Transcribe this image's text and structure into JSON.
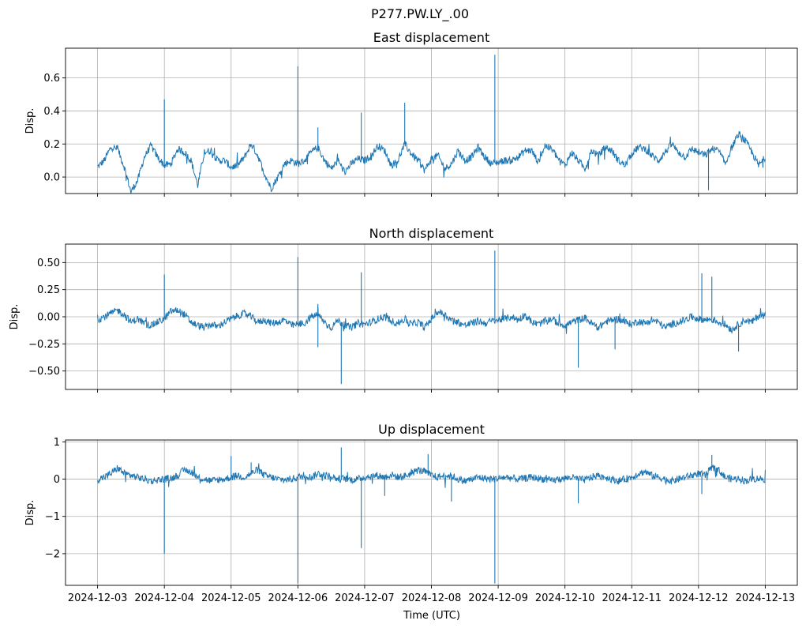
{
  "figure": {
    "title": "P277.PW.LY_.00",
    "xlabel": "Time (UTC)"
  },
  "chart_data": [
    {
      "type": "line",
      "title": "East displacement",
      "ylabel": "Disp.",
      "xlim": [
        -0.48,
        10.48
      ],
      "ylim": [
        -0.1,
        0.78
      ],
      "yticks": [
        0.0,
        0.2,
        0.4,
        0.6
      ],
      "ytick_labels": [
        "0.0",
        "0.2",
        "0.4",
        "0.6"
      ],
      "grid": true,
      "color": "#1f77b4",
      "series": [
        {
          "name": "East",
          "x": [
            0,
            0.1,
            0.2,
            0.3,
            0.4,
            0.5,
            0.6,
            0.7,
            0.8,
            0.9,
            1.0,
            1.1,
            1.2,
            1.3,
            1.4,
            1.5,
            1.6,
            1.7,
            1.8,
            1.9,
            2.0,
            2.1,
            2.2,
            2.3,
            2.4,
            2.5,
            2.6,
            2.7,
            2.8,
            2.9,
            3.0,
            3.1,
            3.2,
            3.3,
            3.4,
            3.5,
            3.6,
            3.7,
            3.8,
            3.9,
            4.0,
            4.1,
            4.2,
            4.3,
            4.4,
            4.5,
            4.6,
            4.7,
            4.8,
            4.9,
            5.0,
            5.1,
            5.2,
            5.3,
            5.4,
            5.5,
            5.6,
            5.7,
            5.8,
            5.9,
            6.0,
            6.1,
            6.2,
            6.3,
            6.4,
            6.5,
            6.6,
            6.7,
            6.8,
            6.9,
            7.0,
            7.1,
            7.2,
            7.3,
            7.4,
            7.5,
            7.6,
            7.7,
            7.8,
            7.9,
            8.0,
            8.1,
            8.2,
            8.3,
            8.4,
            8.5,
            8.6,
            8.7,
            8.8,
            8.9,
            9.0,
            9.1,
            9.2,
            9.3,
            9.4,
            9.5,
            9.6,
            9.7,
            9.8,
            9.9,
            10.0
          ],
          "values": [
            0.06,
            0.1,
            0.18,
            0.17,
            0.06,
            -0.09,
            -0.02,
            0.12,
            0.19,
            0.12,
            0.07,
            0.08,
            0.17,
            0.15,
            0.1,
            -0.05,
            0.15,
            0.16,
            0.1,
            0.1,
            0.06,
            0.07,
            0.12,
            0.2,
            0.13,
            0.02,
            -0.07,
            0.0,
            0.08,
            0.1,
            0.08,
            0.1,
            0.15,
            0.18,
            0.1,
            0.05,
            0.1,
            0.03,
            0.08,
            0.11,
            0.1,
            0.13,
            0.19,
            0.16,
            0.07,
            0.1,
            0.2,
            0.14,
            0.1,
            0.04,
            0.11,
            0.13,
            0.05,
            0.08,
            0.16,
            0.1,
            0.12,
            0.18,
            0.12,
            0.08,
            0.09,
            0.1,
            0.1,
            0.12,
            0.16,
            0.16,
            0.09,
            0.19,
            0.17,
            0.11,
            0.07,
            0.15,
            0.1,
            0.05,
            0.16,
            0.13,
            0.18,
            0.16,
            0.1,
            0.07,
            0.14,
            0.18,
            0.17,
            0.13,
            0.1,
            0.15,
            0.2,
            0.15,
            0.12,
            0.17,
            0.15,
            0.13,
            0.17,
            0.16,
            0.08,
            0.18,
            0.26,
            0.22,
            0.15,
            0.07,
            0.12
          ]
        }
      ],
      "spikes": [
        {
          "x": 1.0,
          "y": 0.47
        },
        {
          "x": 3.0,
          "y": 0.67
        },
        {
          "x": 3.3,
          "y": 0.3
        },
        {
          "x": 3.95,
          "y": 0.39
        },
        {
          "x": 4.6,
          "y": 0.45
        },
        {
          "x": 5.95,
          "y": 0.74
        },
        {
          "x": 9.15,
          "y": -0.08
        }
      ]
    },
    {
      "type": "line",
      "title": "North displacement",
      "ylabel": "Disp.",
      "xlim": [
        -0.48,
        10.48
      ],
      "ylim": [
        -0.67,
        0.67
      ],
      "yticks": [
        -0.5,
        -0.25,
        0.0,
        0.25,
        0.5
      ],
      "ytick_labels": [
        "−0.50",
        "−0.25",
        "0.00",
        "0.25",
        "0.50"
      ],
      "grid": true,
      "color": "#1f77b4",
      "series": [
        {
          "name": "North",
          "x": [
            0,
            0.1,
            0.2,
            0.3,
            0.4,
            0.5,
            0.6,
            0.7,
            0.8,
            0.9,
            1.0,
            1.1,
            1.2,
            1.3,
            1.4,
            1.5,
            1.6,
            1.7,
            1.8,
            1.9,
            2.0,
            2.1,
            2.2,
            2.3,
            2.4,
            2.5,
            2.6,
            2.7,
            2.8,
            2.9,
            3.0,
            3.1,
            3.2,
            3.3,
            3.4,
            3.5,
            3.6,
            3.7,
            3.8,
            3.9,
            4.0,
            4.1,
            4.2,
            4.3,
            4.4,
            4.5,
            4.6,
            4.7,
            4.8,
            4.9,
            5.0,
            5.1,
            5.2,
            5.3,
            5.4,
            5.5,
            5.6,
            5.7,
            5.8,
            5.9,
            6.0,
            6.1,
            6.2,
            6.3,
            6.4,
            6.5,
            6.6,
            6.7,
            6.8,
            6.9,
            7.0,
            7.1,
            7.2,
            7.3,
            7.4,
            7.5,
            7.6,
            7.7,
            7.8,
            7.9,
            8.0,
            8.1,
            8.2,
            8.3,
            8.4,
            8.5,
            8.6,
            8.7,
            8.8,
            8.9,
            9.0,
            9.1,
            9.2,
            9.3,
            9.4,
            9.5,
            9.6,
            9.7,
            9.8,
            9.9,
            10.0
          ],
          "values": [
            -0.03,
            0.0,
            0.03,
            0.06,
            0.02,
            -0.05,
            -0.02,
            -0.06,
            -0.08,
            -0.05,
            -0.02,
            0.05,
            0.06,
            0.02,
            -0.05,
            -0.08,
            -0.1,
            -0.07,
            -0.09,
            -0.05,
            -0.02,
            0.01,
            0.03,
            0.0,
            -0.05,
            -0.03,
            -0.06,
            -0.05,
            -0.03,
            -0.08,
            -0.07,
            -0.06,
            0.0,
            0.02,
            -0.05,
            -0.1,
            -0.03,
            -0.08,
            -0.1,
            -0.06,
            -0.07,
            -0.05,
            -0.02,
            0.0,
            -0.04,
            -0.06,
            -0.02,
            -0.07,
            -0.05,
            -0.1,
            -0.02,
            0.05,
            0.02,
            -0.03,
            -0.05,
            -0.08,
            -0.06,
            -0.04,
            -0.06,
            -0.04,
            -0.03,
            -0.02,
            0.0,
            -0.03,
            0.02,
            -0.05,
            -0.07,
            -0.04,
            -0.02,
            -0.06,
            -0.08,
            -0.05,
            -0.03,
            -0.01,
            -0.06,
            -0.1,
            -0.05,
            -0.03,
            -0.02,
            -0.05,
            -0.07,
            -0.04,
            -0.06,
            -0.03,
            -0.05,
            -0.1,
            -0.07,
            -0.05,
            -0.03,
            0.0,
            -0.02,
            -0.03,
            -0.02,
            -0.05,
            -0.07,
            -0.12,
            -0.07,
            -0.03,
            -0.05,
            0.01,
            0.02
          ]
        }
      ],
      "spikes": [
        {
          "x": 1.0,
          "y": 0.39
        },
        {
          "x": 3.0,
          "y": 0.55
        },
        {
          "x": 3.3,
          "y": -0.28
        },
        {
          "x": 3.65,
          "y": -0.62
        },
        {
          "x": 3.95,
          "y": 0.41
        },
        {
          "x": 5.95,
          "y": 0.61
        },
        {
          "x": 7.2,
          "y": -0.47
        },
        {
          "x": 7.75,
          "y": -0.3
        },
        {
          "x": 9.05,
          "y": 0.4
        },
        {
          "x": 9.2,
          "y": 0.37
        },
        {
          "x": 9.6,
          "y": -0.32
        }
      ]
    },
    {
      "type": "line",
      "title": "Up displacement",
      "ylabel": "Disp.",
      "xlim": [
        -0.48,
        10.48
      ],
      "ylim": [
        -2.85,
        1.05
      ],
      "yticks": [
        -2,
        -1,
        0,
        1
      ],
      "ytick_labels": [
        "−2",
        "−1",
        "0",
        "1"
      ],
      "grid": true,
      "color": "#1f77b4",
      "series": [
        {
          "name": "Up",
          "x": [
            0,
            0.1,
            0.2,
            0.3,
            0.4,
            0.5,
            0.6,
            0.7,
            0.8,
            0.9,
            1.0,
            1.1,
            1.2,
            1.3,
            1.4,
            1.5,
            1.6,
            1.7,
            1.8,
            1.9,
            2.0,
            2.1,
            2.2,
            2.3,
            2.4,
            2.5,
            2.6,
            2.7,
            2.8,
            2.9,
            3.0,
            3.1,
            3.2,
            3.3,
            3.4,
            3.5,
            3.6,
            3.7,
            3.8,
            3.9,
            4.0,
            4.1,
            4.2,
            4.3,
            4.4,
            4.5,
            4.6,
            4.7,
            4.8,
            4.9,
            5.0,
            5.1,
            5.2,
            5.3,
            5.4,
            5.5,
            5.6,
            5.7,
            5.8,
            5.9,
            6.0,
            6.1,
            6.2,
            6.3,
            6.4,
            6.5,
            6.6,
            6.7,
            6.8,
            6.9,
            7.0,
            7.1,
            7.2,
            7.3,
            7.4,
            7.5,
            7.6,
            7.7,
            7.8,
            7.9,
            8.0,
            8.1,
            8.2,
            8.3,
            8.4,
            8.5,
            8.6,
            8.7,
            8.8,
            8.9,
            9.0,
            9.1,
            9.2,
            9.3,
            9.4,
            9.5,
            9.6,
            9.7,
            9.8,
            9.9,
            10.0
          ],
          "values": [
            0.0,
            0.05,
            0.15,
            0.3,
            0.15,
            0.1,
            0.05,
            0.0,
            -0.05,
            -0.02,
            0.0,
            0.02,
            0.1,
            0.25,
            0.2,
            0.05,
            0.0,
            -0.05,
            -0.02,
            0.0,
            0.05,
            0.1,
            0.05,
            0.15,
            0.25,
            0.1,
            0.05,
            0.0,
            -0.02,
            0.0,
            0.05,
            0.1,
            0.05,
            0.15,
            0.1,
            0.08,
            0.0,
            0.02,
            -0.02,
            0.0,
            0.05,
            0.08,
            0.1,
            0.05,
            0.12,
            0.05,
            0.08,
            0.15,
            0.25,
            0.2,
            0.1,
            0.05,
            0.1,
            0.08,
            0.0,
            -0.05,
            0.0,
            0.05,
            0.02,
            0.0,
            0.02,
            0.05,
            0.03,
            0.0,
            0.02,
            0.05,
            0.02,
            0.0,
            -0.05,
            0.0,
            0.02,
            0.05,
            0.0,
            -0.02,
            0.05,
            0.1,
            0.05,
            0.0,
            -0.05,
            0.0,
            0.05,
            0.15,
            0.2,
            0.1,
            0.05,
            0.0,
            -0.05,
            0.0,
            0.05,
            0.1,
            0.15,
            0.1,
            0.3,
            0.25,
            0.05,
            0.0,
            0.02,
            -0.05,
            0.0,
            0.02,
            0.0
          ]
        }
      ],
      "spikes": [
        {
          "x": 1.0,
          "y": -2.0
        },
        {
          "x": 2.0,
          "y": 0.62
        },
        {
          "x": 2.3,
          "y": 0.45
        },
        {
          "x": 3.0,
          "y": -2.8
        },
        {
          "x": 3.65,
          "y": 0.85
        },
        {
          "x": 3.95,
          "y": -1.85
        },
        {
          "x": 4.3,
          "y": -0.45
        },
        {
          "x": 4.95,
          "y": 0.67
        },
        {
          "x": 5.3,
          "y": -0.6
        },
        {
          "x": 5.95,
          "y": -2.8
        },
        {
          "x": 7.2,
          "y": -0.65
        },
        {
          "x": 9.05,
          "y": -0.4
        },
        {
          "x": 9.2,
          "y": 0.65
        }
      ]
    }
  ],
  "x_axis": {
    "ticks": [
      0,
      1,
      2,
      3,
      4,
      5,
      6,
      7,
      8,
      9,
      10
    ],
    "tick_labels": [
      "2024-12-03",
      "2024-12-04",
      "2024-12-05",
      "2024-12-06",
      "2024-12-07",
      "2024-12-08",
      "2024-12-09",
      "2024-12-10",
      "2024-12-11",
      "2024-12-12",
      "2024-12-13"
    ]
  }
}
